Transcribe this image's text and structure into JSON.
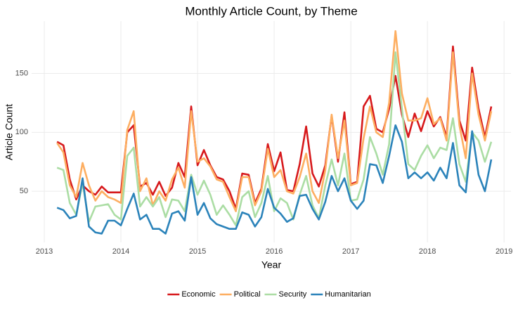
{
  "chart_data": {
    "type": "line",
    "title": "Monthly Article Count, by Theme",
    "x_label": "Year",
    "y_label": "Article Count",
    "x": [
      2013.167,
      2013.25,
      2013.333,
      2013.417,
      2013.5,
      2013.583,
      2013.667,
      2013.75,
      2013.833,
      2013.917,
      2014,
      2014.083,
      2014.167,
      2014.25,
      2014.333,
      2014.417,
      2014.5,
      2014.583,
      2014.667,
      2014.75,
      2014.833,
      2014.917,
      2015,
      2015.083,
      2015.167,
      2015.25,
      2015.333,
      2015.417,
      2015.5,
      2015.583,
      2015.667,
      2015.75,
      2015.833,
      2015.917,
      2016,
      2016.083,
      2016.167,
      2016.25,
      2016.333,
      2016.417,
      2016.5,
      2016.583,
      2016.667,
      2016.75,
      2016.833,
      2016.917,
      2017,
      2017.083,
      2017.167,
      2017.25,
      2017.333,
      2017.417,
      2017.5,
      2017.583,
      2017.667,
      2017.75,
      2017.833,
      2017.917,
      2018,
      2018.083,
      2018.167,
      2018.25,
      2018.333,
      2018.417,
      2018.5,
      2018.583,
      2018.667,
      2018.75,
      2018.833
    ],
    "series": [
      {
        "name": "Economic",
        "color": "#d7191c",
        "values": [
          92,
          89,
          60,
          43,
          55,
          50,
          47,
          54,
          49,
          49,
          49,
          100,
          106,
          54,
          57,
          47,
          58,
          46,
          53,
          74,
          62,
          122,
          72,
          85,
          72,
          62,
          60,
          50,
          35,
          65,
          64,
          40,
          52,
          90,
          67,
          83,
          51,
          50,
          73,
          105,
          65,
          54,
          72,
          114,
          75,
          117,
          56,
          58,
          122,
          131,
          103,
          100,
          120,
          148,
          115,
          96,
          116,
          101,
          118,
          105,
          113,
          96,
          173,
          110,
          93,
          155,
          120,
          96,
          122
        ]
      },
      {
        "name": "Political",
        "color": "#fdae61",
        "values": [
          91,
          83,
          55,
          45,
          74,
          55,
          42,
          50,
          45,
          43,
          40,
          102,
          118,
          50,
          61,
          38,
          50,
          42,
          60,
          70,
          53,
          118,
          75,
          78,
          71,
          60,
          58,
          45,
          33,
          62,
          62,
          38,
          50,
          86,
          62,
          68,
          50,
          48,
          62,
          82,
          50,
          40,
          68,
          115,
          78,
          110,
          55,
          57,
          95,
          122,
          100,
          96,
          125,
          186,
          133,
          110,
          110,
          112,
          129,
          107,
          112,
          93,
          168,
          106,
          78,
          150,
          115,
          93,
          118
        ]
      },
      {
        "name": "Security",
        "color": "#abdda4",
        "values": [
          70,
          68,
          40,
          30,
          57,
          24,
          37,
          38,
          39,
          30,
          26,
          80,
          87,
          37,
          45,
          37,
          45,
          28,
          43,
          42,
          33,
          64,
          47,
          59,
          47,
          30,
          38,
          30,
          21,
          45,
          50,
          28,
          40,
          63,
          33,
          44,
          40,
          26,
          47,
          63,
          38,
          27,
          55,
          77,
          55,
          82,
          42,
          43,
          60,
          96,
          82,
          64,
          90,
          168,
          120,
          73,
          68,
          80,
          89,
          78,
          87,
          85,
          112,
          73,
          58,
          100,
          93,
          75,
          92
        ]
      },
      {
        "name": "Humanitarian",
        "color": "#2b83ba",
        "values": [
          36,
          34,
          27,
          29,
          61,
          20,
          15,
          14,
          25,
          25,
          21,
          35,
          48,
          26,
          30,
          18,
          18,
          14,
          31,
          33,
          25,
          62,
          30,
          40,
          27,
          22,
          20,
          18,
          18,
          32,
          30,
          20,
          28,
          52,
          36,
          31,
          24,
          27,
          46,
          47,
          35,
          26,
          41,
          63,
          50,
          61,
          42,
          35,
          42,
          73,
          72,
          57,
          80,
          106,
          92,
          61,
          66,
          61,
          66,
          59,
          70,
          61,
          91,
          55,
          49,
          101,
          64,
          50,
          77
        ]
      }
    ],
    "xlim": [
      2012.835,
      2019.09
    ],
    "xticks": [
      2013,
      2014,
      2015,
      2016,
      2017,
      2018,
      2019
    ],
    "ylim": [
      6.5,
      194.5
    ],
    "yticks": [
      50,
      100,
      150
    ],
    "grid": true,
    "legend": "bottom"
  }
}
